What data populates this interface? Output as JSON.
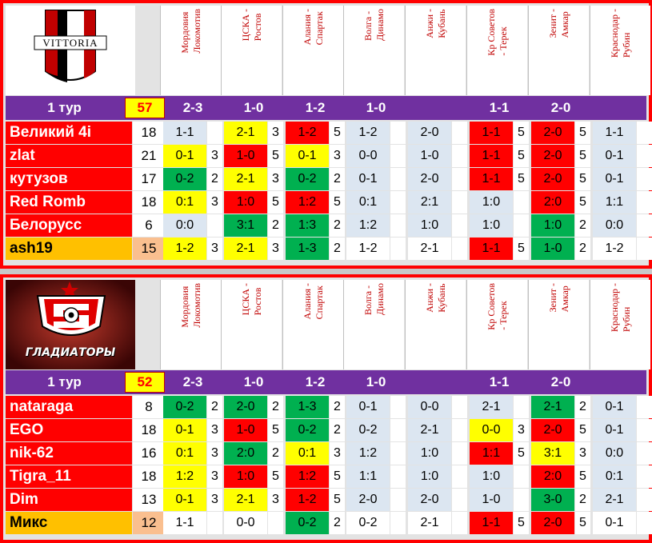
{
  "matches": [
    {
      "home": "Мордовия",
      "away": "Локомотив",
      "label": "Мордовия\nЛокомотив"
    },
    {
      "home": "ЦСКА",
      "away": "Ростов",
      "label": "ЦСКА -\nРостов"
    },
    {
      "home": "Алания",
      "away": "Спартак",
      "label": "Алания -\nСпартак"
    },
    {
      "home": "Волга",
      "away": "Динамо",
      "label": "Волга -\nДинамо"
    },
    {
      "home": "Анжи",
      "away": "Кубань",
      "label": "Анжи -\nКубань"
    },
    {
      "home": "Кр Советов",
      "away": "Терек",
      "label": "Кр Советов\n- Терек"
    },
    {
      "home": "Зенит",
      "away": "Амкар",
      "label": "Зенит -\nАмкар"
    },
    {
      "home": "Краснодар",
      "away": "Рубин",
      "label": "Краснодар -\nРубин"
    }
  ],
  "teams": [
    {
      "logo_text": "VITTORIA",
      "round_label": "1 тур",
      "round_score": "57",
      "results": [
        "2-3",
        "1-0",
        "1-2",
        "1-0",
        "",
        "1-1",
        "2-0",
        ""
      ],
      "players": [
        {
          "name": "Великий 4i",
          "total": "18",
          "preds": [
            [
              "1-1",
              ""
            ],
            [
              "2-1",
              "3"
            ],
            [
              "1-2",
              "5"
            ],
            [
              "1-2",
              ""
            ],
            [
              "2-0",
              ""
            ],
            [
              "1-1",
              "5"
            ],
            [
              "2-0",
              "5"
            ],
            [
              "1-1",
              ""
            ]
          ],
          "colors": [
            "",
            "y",
            "r",
            "",
            "",
            "r",
            "r",
            ""
          ]
        },
        {
          "name": "zlat",
          "total": "21",
          "preds": [
            [
              "0-1",
              "3"
            ],
            [
              "1-0",
              "5"
            ],
            [
              "0-1",
              "3"
            ],
            [
              "0-0",
              ""
            ],
            [
              "1-0",
              ""
            ],
            [
              "1-1",
              "5"
            ],
            [
              "2-0",
              "5"
            ],
            [
              "0-1",
              ""
            ]
          ],
          "colors": [
            "y",
            "r",
            "y",
            "",
            "",
            "r",
            "r",
            ""
          ]
        },
        {
          "name": "кутузов",
          "total": "17",
          "preds": [
            [
              "0-2",
              "2"
            ],
            [
              "2-1",
              "3"
            ],
            [
              "0-2",
              "2"
            ],
            [
              "0-1",
              ""
            ],
            [
              "2-0",
              ""
            ],
            [
              "1-1",
              "5"
            ],
            [
              "2-0",
              "5"
            ],
            [
              "0-1",
              ""
            ]
          ],
          "colors": [
            "g",
            "y",
            "g",
            "",
            "",
            "r",
            "r",
            ""
          ]
        },
        {
          "name": "Red Romb",
          "total": "18",
          "preds": [
            [
              "0:1",
              "3"
            ],
            [
              "1:0",
              "5"
            ],
            [
              "1:2",
              "5"
            ],
            [
              "0:1",
              ""
            ],
            [
              "2:1",
              ""
            ],
            [
              "1:0",
              ""
            ],
            [
              "2:0",
              "5"
            ],
            [
              "1:1",
              ""
            ]
          ],
          "colors": [
            "y",
            "r",
            "r",
            "",
            "",
            "",
            "r",
            ""
          ]
        },
        {
          "name": "Белорусс",
          "total": "6",
          "preds": [
            [
              "0:0",
              ""
            ],
            [
              "3:1",
              "2"
            ],
            [
              "1:3",
              "2"
            ],
            [
              "1:2",
              ""
            ],
            [
              "1:0",
              ""
            ],
            [
              "1:0",
              ""
            ],
            [
              "1:0",
              "2"
            ],
            [
              "0:0",
              ""
            ]
          ],
          "colors": [
            "",
            "g",
            "g",
            "",
            "",
            "",
            "g",
            ""
          ]
        },
        {
          "name": "ash19",
          "total": "15",
          "preds": [
            [
              "1-2",
              "3"
            ],
            [
              "2-1",
              "3"
            ],
            [
              "1-3",
              "2"
            ],
            [
              "1-2",
              ""
            ],
            [
              "2-1",
              ""
            ],
            [
              "1-1",
              "5"
            ],
            [
              "1-0",
              "2"
            ],
            [
              "1-2",
              ""
            ]
          ],
          "colors": [
            "y",
            "y",
            "g",
            "",
            "",
            "r",
            "g",
            ""
          ]
        }
      ]
    },
    {
      "logo_text": "ГЛАДИАТОРЫ",
      "round_label": "1 тур",
      "round_score": "52",
      "results": [
        "2-3",
        "1-0",
        "1-2",
        "1-0",
        "",
        "1-1",
        "2-0",
        ""
      ],
      "players": [
        {
          "name": "nataraga",
          "total": "8",
          "preds": [
            [
              "0-2",
              "2"
            ],
            [
              "2-0",
              "2"
            ],
            [
              "1-3",
              "2"
            ],
            [
              "0-1",
              ""
            ],
            [
              "0-0",
              ""
            ],
            [
              "2-1",
              ""
            ],
            [
              "2-1",
              "2"
            ],
            [
              "0-1",
              ""
            ]
          ],
          "colors": [
            "g",
            "g",
            "g",
            "",
            "",
            "",
            "g",
            ""
          ]
        },
        {
          "name": "EGO",
          "total": "18",
          "preds": [
            [
              "0-1",
              "3"
            ],
            [
              "1-0",
              "5"
            ],
            [
              "0-2",
              "2"
            ],
            [
              "0-2",
              ""
            ],
            [
              "2-1",
              ""
            ],
            [
              "0-0",
              "3"
            ],
            [
              "2-0",
              "5"
            ],
            [
              "0-1",
              ""
            ]
          ],
          "colors": [
            "y",
            "r",
            "g",
            "",
            "",
            "y",
            "r",
            ""
          ]
        },
        {
          "name": "nik-62",
          "total": "16",
          "preds": [
            [
              "0:1",
              "3"
            ],
            [
              "2:0",
              "2"
            ],
            [
              "0:1",
              "3"
            ],
            [
              "1:2",
              ""
            ],
            [
              "1:0",
              ""
            ],
            [
              "1:1",
              "5"
            ],
            [
              "3:1",
              "3"
            ],
            [
              "0:0",
              ""
            ]
          ],
          "colors": [
            "y",
            "g",
            "y",
            "",
            "",
            "r",
            "y",
            ""
          ]
        },
        {
          "name": "Tigra_11",
          "total": "18",
          "preds": [
            [
              "1:2",
              "3"
            ],
            [
              "1:0",
              "5"
            ],
            [
              "1:2",
              "5"
            ],
            [
              "1:1",
              ""
            ],
            [
              "1:0",
              ""
            ],
            [
              "1:0",
              ""
            ],
            [
              "2:0",
              "5"
            ],
            [
              "0:1",
              ""
            ]
          ],
          "colors": [
            "y",
            "r",
            "r",
            "",
            "",
            "",
            "r",
            ""
          ]
        },
        {
          "name": "Dim",
          "total": "13",
          "preds": [
            [
              "0-1",
              "3"
            ],
            [
              "2-1",
              "3"
            ],
            [
              "1-2",
              "5"
            ],
            [
              "2-0",
              ""
            ],
            [
              "2-0",
              ""
            ],
            [
              "1-0",
              ""
            ],
            [
              "3-0",
              "2"
            ],
            [
              "2-1",
              ""
            ]
          ],
          "colors": [
            "y",
            "y",
            "r",
            "",
            "",
            "",
            "g",
            ""
          ]
        },
        {
          "name": "Микс",
          "total": "12",
          "preds": [
            [
              "1-1",
              ""
            ],
            [
              "0-0",
              ""
            ],
            [
              "0-2",
              "2"
            ],
            [
              "0-2",
              ""
            ],
            [
              "2-1",
              ""
            ],
            [
              "1-1",
              "5"
            ],
            [
              "2-0",
              "5"
            ],
            [
              "0-1",
              ""
            ]
          ],
          "colors": [
            "",
            "",
            "g",
            "",
            "",
            "r",
            "r",
            ""
          ]
        }
      ]
    }
  ],
  "colors": {
    "accent": "#7030a0",
    "red": "#ff0000",
    "yellow": "#ffff00",
    "green": "#00b050",
    "orange": "#ffc000",
    "peach": "#fabf8f",
    "light_blue": "#dce6f1"
  }
}
